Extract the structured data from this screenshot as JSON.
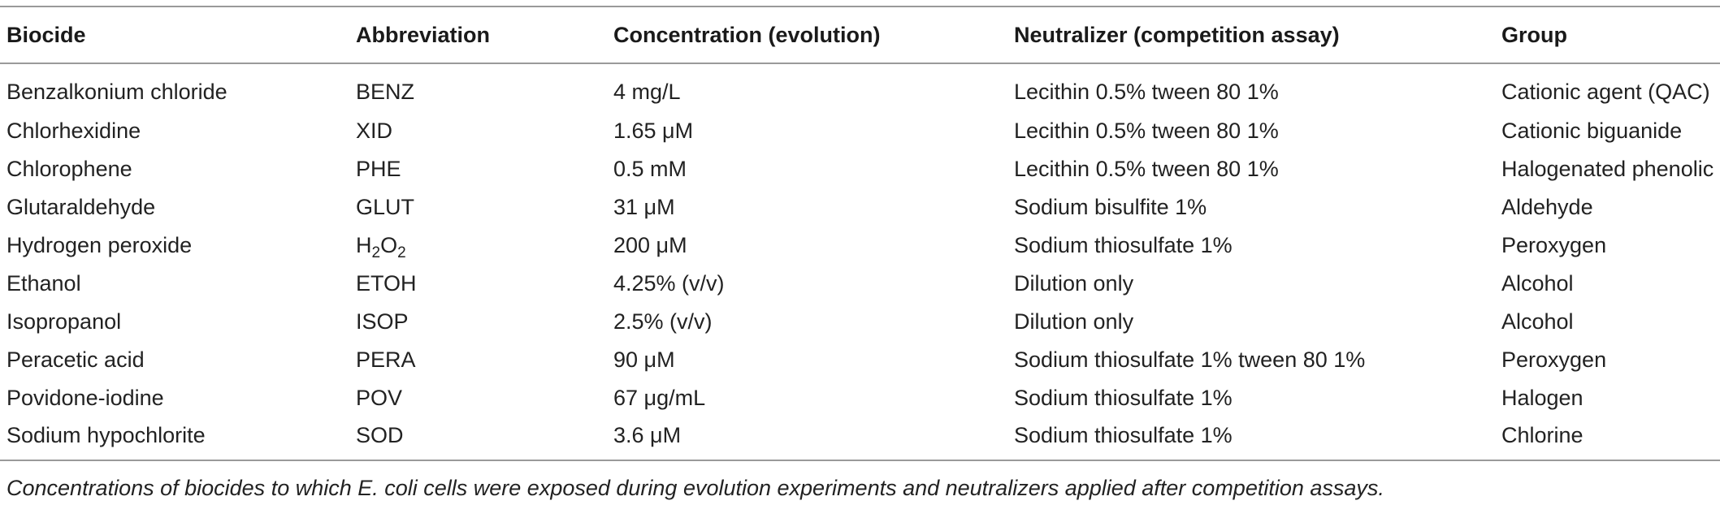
{
  "table": {
    "columns": [
      "Biocide",
      "Abbreviation",
      "Concentration (evolution)",
      "Neutralizer (competition assay)",
      "Group"
    ],
    "rows": [
      {
        "biocide": "Benzalkonium chloride",
        "abbreviation": "BENZ",
        "concentration": "4 mg/L",
        "neutralizer": "Lecithin 0.5% tween 80 1%",
        "group": "Cationic agent (QAC)"
      },
      {
        "biocide": "Chlorhexidine",
        "abbreviation": "XID",
        "concentration": "1.65 μM",
        "neutralizer": "Lecithin 0.5% tween 80 1%",
        "group": "Cationic biguanide"
      },
      {
        "biocide": "Chlorophene",
        "abbreviation": "PHE",
        "concentration": "0.5 mM",
        "neutralizer": "Lecithin 0.5% tween 80 1%",
        "group": "Halogenated phenolic"
      },
      {
        "biocide": "Glutaraldehyde",
        "abbreviation": "GLUT",
        "concentration": "31 μM",
        "neutralizer": "Sodium bisulfite 1%",
        "group": "Aldehyde"
      },
      {
        "biocide": "Hydrogen peroxide",
        "abbreviation": "H2O2",
        "abbreviation_parts": {
          "h": "H",
          "h_sub": "2",
          "o": "O",
          "o_sub": "2"
        },
        "concentration": "200 μM",
        "neutralizer": "Sodium thiosulfate 1%",
        "group": "Peroxygen"
      },
      {
        "biocide": "Ethanol",
        "abbreviation": "ETOH",
        "concentration": "4.25% (v/v)",
        "neutralizer": "Dilution only",
        "group": "Alcohol"
      },
      {
        "biocide": "Isopropanol",
        "abbreviation": "ISOP",
        "concentration": "2.5% (v/v)",
        "neutralizer": "Dilution only",
        "group": "Alcohol"
      },
      {
        "biocide": "Peracetic acid",
        "abbreviation": "PERA",
        "concentration": "90 μM",
        "neutralizer": "Sodium thiosulfate 1% tween 80 1%",
        "group": "Peroxygen"
      },
      {
        "biocide": "Povidone-iodine",
        "abbreviation": "POV",
        "concentration": "67 μg/mL",
        "neutralizer": "Sodium thiosulfate 1%",
        "group": "Halogen"
      },
      {
        "biocide": "Sodium hypochlorite",
        "abbreviation": "SOD",
        "concentration": "3.6 μM",
        "neutralizer": "Sodium thiosulfate 1%",
        "group": "Chlorine"
      }
    ]
  },
  "caption": "Concentrations of biocides to which E. coli cells were exposed during evolution experiments and neutralizers applied after competition assays."
}
